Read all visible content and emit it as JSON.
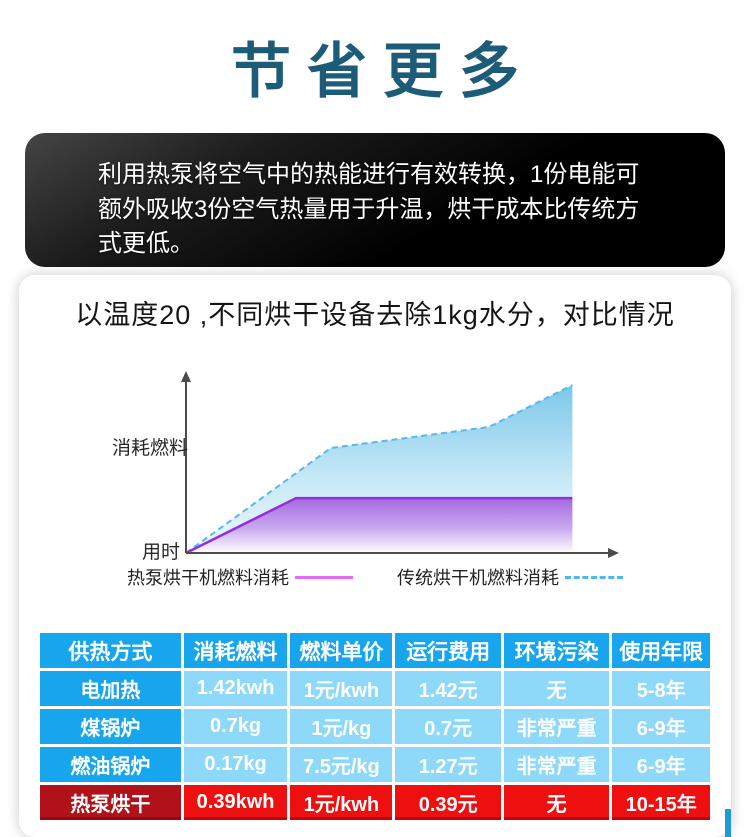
{
  "page": {
    "title": "节省更多"
  },
  "intro": {
    "lines": [
      "利用热泵将空气中的热能进行有效转换，1份电能可",
      "额外吸收3份空气热量用于升温，烘干成本比传统方",
      "式更低。"
    ]
  },
  "chart_card": {
    "title": "以温度20 ,不同烘干设备去除1kg水分，对比情况"
  },
  "chart_data": {
    "type": "area",
    "title": "以温度20 ,不同烘干设备去除1kg水分，对比情况",
    "xlabel": "用时",
    "ylabel": "消耗燃料",
    "axes_numeric": false,
    "grid": false,
    "legend_position": "bottom",
    "series": [
      {
        "name": "热泵烘干机燃料消耗",
        "line": "solid",
        "color": "#9230dd",
        "legend_color": "#e36af2",
        "fill_top": "#aa72e2",
        "fill_bottom": "#ffffff",
        "points": [
          [
            0,
            0
          ],
          [
            0.262,
            0.327
          ],
          [
            0.92,
            0.327
          ]
        ]
      },
      {
        "name": "传统烘干机燃料消耗",
        "line": "dashed",
        "color": "#57b8ec",
        "legend_color": "#4fb7f0",
        "fill_top": "#7cc8e9",
        "fill_bottom": "#eaf7fd",
        "points": [
          [
            0,
            0
          ],
          [
            0.345,
            0.625
          ],
          [
            0.721,
            0.75
          ],
          [
            0.92,
            1.0
          ]
        ]
      }
    ]
  },
  "table": {
    "headers": [
      "供热方式",
      "消耗燃料",
      "燃料单价",
      "运行费用",
      "环境污染",
      "使用年限"
    ],
    "col_widths_pct": [
      21.5,
      15.8,
      15.6,
      16.1,
      16.1,
      14.9
    ],
    "rows": [
      {
        "cells": [
          "电加热",
          "1.42kwh",
          "1元/kwh",
          "1.42元",
          "无",
          "5-8年"
        ],
        "highlight": false
      },
      {
        "cells": [
          "煤锅炉",
          "0.7kg",
          "1元/kg",
          "0.7元",
          "非常严重",
          "6-9年"
        ],
        "highlight": false
      },
      {
        "cells": [
          "燃油锅炉",
          "0.17kg",
          "7.5元/kg",
          "1.27元",
          "非常严重",
          "6-9年"
        ],
        "highlight": false
      },
      {
        "cells": [
          "热泵烘干",
          "0.39kwh",
          "1元/kwh",
          "0.39元",
          "无",
          "10-15年"
        ],
        "highlight": true
      }
    ]
  },
  "colors": {
    "title_teal": "#1d5c78",
    "banner_black": "#000000",
    "table_blue_dark": "#17a6ee",
    "table_blue_light": "#8ed9f9",
    "table_red_bright": "#ee0f10",
    "table_red_dark": "#b1121a",
    "axis_gray": "#4c4c4c"
  }
}
